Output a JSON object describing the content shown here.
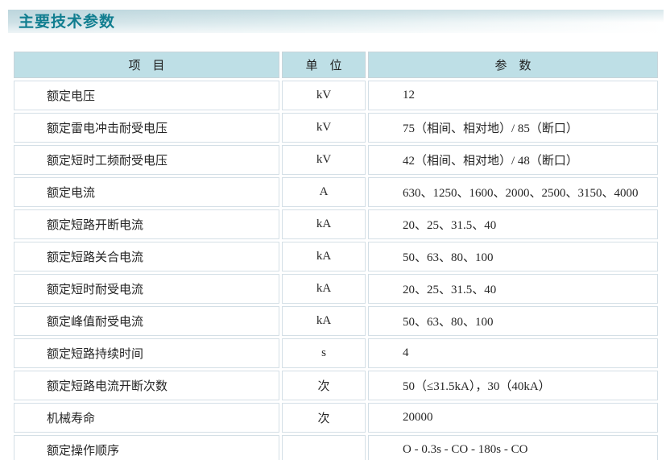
{
  "page": {
    "section_title": "主要技术参数"
  },
  "table": {
    "headers": [
      "项　目",
      "单　位",
      "参　数"
    ],
    "rows": [
      {
        "item": "额定电压",
        "unit": "kV",
        "value": "12"
      },
      {
        "item": "额定雷电冲击耐受电压",
        "unit": "kV",
        "value": "75（相间、相对地）/ 85（断口）"
      },
      {
        "item": "额定短时工频耐受电压",
        "unit": "kV",
        "value": "42（相间、相对地）/ 48（断口）"
      },
      {
        "item": "额定电流",
        "unit": "A",
        "value": "630、1250、1600、2000、2500、3150、4000"
      },
      {
        "item": "额定短路开断电流",
        "unit": "kA",
        "value": "20、25、31.5、40"
      },
      {
        "item": "额定短路关合电流",
        "unit": "kA",
        "value": "50、63、80、100"
      },
      {
        "item": "额定短时耐受电流",
        "unit": "kA",
        "value": "20、25、31.5、40"
      },
      {
        "item": "额定峰值耐受电流",
        "unit": "kA",
        "value": "50、63、80、100"
      },
      {
        "item": "额定短路持续时间",
        "unit": "s",
        "value": "4"
      },
      {
        "item": "额定短路电流开断次数",
        "unit": "次",
        "value": "50（≤31.5kA），30（40kA）"
      },
      {
        "item": "机械寿命",
        "unit": "次",
        "value": "20000"
      },
      {
        "item": "额定操作顺序",
        "unit": "",
        "value": "O - 0.3s - CO - 180s - CO"
      }
    ]
  },
  "colors": {
    "title_text": "#117e90",
    "banner_gradient_left": "#c8dde3",
    "header_background": "#bedfe6",
    "cell_border": "#d4dfe6",
    "table_bottom_border": "#d9e2e8",
    "body_text": "#262626"
  }
}
